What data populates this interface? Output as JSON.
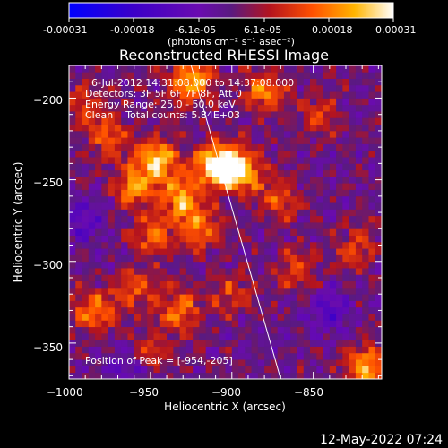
{
  "colorbar": {
    "tick_labels": [
      "-0.00031",
      "-0.00018",
      "-6.1e-05",
      "6.1e-05",
      "0.00018",
      "0.00031"
    ],
    "unit_label": "(photons cm⁻² s⁻¹ asec⁻²)",
    "range": [
      -0.00031,
      0.00031
    ]
  },
  "chart_data": {
    "type": "heatmap",
    "title": "Reconstructed RHESSI Image",
    "xlabel": "Heliocentric X (arcsec)",
    "ylabel": "Heliocentric Y (arcsec)",
    "xlim": [
      -1000,
      -808
    ],
    "ylim": [
      -372,
      -180
    ],
    "x_ticks": [
      -1000,
      -950,
      -900,
      -850
    ],
    "y_ticks": [
      -200,
      -250,
      -300,
      -350
    ],
    "x_tick_labels": [
      "−1000",
      "−950",
      "−900",
      "−850"
    ],
    "y_tick_labels": [
      "−200",
      "−250",
      "−300",
      "−350"
    ],
    "limb_line": [
      [
        -925,
        -180
      ],
      [
        -870,
        -372
      ]
    ],
    "peak_position": [
      -954,
      -205
    ],
    "sources": [
      {
        "x": -925,
        "y": -190,
        "amp": 0.00025
      },
      {
        "x": -880,
        "y": -195,
        "amp": 0.00018
      },
      {
        "x": -910,
        "y": -240,
        "amp": 0.00031
      },
      {
        "x": -895,
        "y": -245,
        "amp": 0.00028
      },
      {
        "x": -945,
        "y": -238,
        "amp": 0.00026
      },
      {
        "x": -960,
        "y": -255,
        "amp": 0.0002
      },
      {
        "x": -930,
        "y": -262,
        "amp": 0.00022
      },
      {
        "x": -920,
        "y": -280,
        "amp": 0.00017
      },
      {
        "x": -948,
        "y": -285,
        "amp": 0.00016
      },
      {
        "x": -975,
        "y": -225,
        "amp": 0.00014
      },
      {
        "x": -985,
        "y": -330,
        "amp": 0.00019
      },
      {
        "x": -960,
        "y": -318,
        "amp": 0.00013
      },
      {
        "x": -932,
        "y": -330,
        "amp": 0.00018
      },
      {
        "x": -900,
        "y": -320,
        "amp": 0.00012
      },
      {
        "x": -950,
        "y": -355,
        "amp": 0.00012
      },
      {
        "x": -870,
        "y": -262,
        "amp": 0.00013
      },
      {
        "x": -860,
        "y": -305,
        "amp": 0.00011
      },
      {
        "x": -825,
        "y": -292,
        "amp": 0.00012
      },
      {
        "x": -818,
        "y": -365,
        "amp": 0.00022
      },
      {
        "x": -845,
        "y": -210,
        "amp": 0.0001
      },
      {
        "x": -990,
        "y": -205,
        "amp": 0.00011
      },
      {
        "x": -965,
        "y": -365,
        "amp": -0.0001
      },
      {
        "x": -840,
        "y": -330,
        "amp": -0.00012
      },
      {
        "x": -990,
        "y": -275,
        "amp": -0.00011
      }
    ]
  },
  "annotations": {
    "time_range": "6-Jul-2012 14:31:08.000 to 14:37:08.000",
    "detectors": "Detectors: 3F 5F 6F 7F 8F, Att 0",
    "energy_range": "Energy Range: 25.0 - 50.0 keV",
    "clean_counts": "Clean    Total counts: 5.84E+03",
    "peak_text": "Position of Peak = [-954,-205]"
  },
  "timestamp": "12-May-2022 07:24"
}
